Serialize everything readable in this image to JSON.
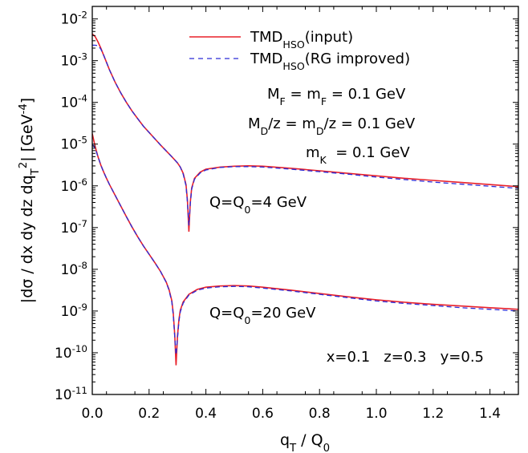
{
  "chart_data": {
    "type": "line",
    "xlabel": "q_T / Q_0",
    "ylabel": "|dσ / dx dy dz dq_T^2| [GeV^-4]",
    "xlim": [
      0,
      1.5
    ],
    "ylim_log10": [
      -11,
      -1.7
    ],
    "log_y": true,
    "grid": false,
    "legend_position": "top",
    "x_ticks": [
      "0.0",
      "0.2",
      "0.4",
      "0.6",
      "0.8",
      "1.0",
      "1.2",
      "1.4"
    ],
    "y_tick_exponents": [
      "-2",
      "-3",
      "-4",
      "-5",
      "-6",
      "-7",
      "-8",
      "-9",
      "-10",
      "-11"
    ],
    "y_tick_base": "10",
    "colors": {
      "input": "#e8202a",
      "rg": "#2b2bd8"
    },
    "legend": [
      {
        "key": "input",
        "base": "TMD",
        "sub": "HSO",
        "rest": "(input)",
        "style": "solid"
      },
      {
        "key": "rg",
        "base": "TMD",
        "sub": "HSO",
        "rest": "(RG improved)",
        "style": "dashed"
      }
    ],
    "annotations": [
      {
        "id": "mass-f",
        "parts": [
          [
            "M",
            ""
          ],
          [
            "F",
            "sub"
          ],
          [
            " = m",
            ""
          ],
          [
            "F",
            "sub"
          ],
          [
            " = 0.1 GeV",
            ""
          ]
        ]
      },
      {
        "id": "mass-d",
        "parts": [
          [
            "M",
            ""
          ],
          [
            "D",
            "sub"
          ],
          [
            "/z = m",
            ""
          ],
          [
            "D",
            "sub"
          ],
          [
            "/z = 0.1 GeV",
            ""
          ]
        ]
      },
      {
        "id": "mass-k",
        "parts": [
          [
            "m",
            ""
          ],
          [
            "K",
            "sub"
          ],
          [
            "  = 0.1 GeV",
            ""
          ]
        ]
      },
      {
        "id": "label-q4",
        "parts": [
          [
            "Q=Q",
            ""
          ],
          [
            "0",
            "sub"
          ],
          [
            "=4 GeV",
            ""
          ]
        ]
      },
      {
        "id": "label-q20",
        "parts": [
          [
            "Q=Q",
            ""
          ],
          [
            "0",
            "sub"
          ],
          [
            "=20 GeV",
            ""
          ]
        ]
      },
      {
        "id": "kinematics",
        "parts": [
          [
            "x=0.1   z=0.3   y=0.5",
            ""
          ]
        ]
      }
    ],
    "series": [
      {
        "name": "TMD_HSO(input), Q=Q_0=4 GeV",
        "key": "input",
        "points": [
          [
            0,
            -2.36
          ],
          [
            0.01,
            -2.42
          ],
          [
            0.02,
            -2.55
          ],
          [
            0.03,
            -2.7
          ],
          [
            0.04,
            -2.87
          ],
          [
            0.05,
            -3.04
          ],
          [
            0.06,
            -3.21
          ],
          [
            0.08,
            -3.51
          ],
          [
            0.1,
            -3.77
          ],
          [
            0.12,
            -4.0
          ],
          [
            0.14,
            -4.21
          ],
          [
            0.16,
            -4.39
          ],
          [
            0.18,
            -4.57
          ],
          [
            0.2,
            -4.72
          ],
          [
            0.22,
            -4.87
          ],
          [
            0.24,
            -5.02
          ],
          [
            0.26,
            -5.16
          ],
          [
            0.28,
            -5.3
          ],
          [
            0.3,
            -5.45
          ],
          [
            0.31,
            -5.55
          ],
          [
            0.32,
            -5.7
          ],
          [
            0.33,
            -5.97
          ],
          [
            0.335,
            -6.35
          ],
          [
            0.34,
            -7.1
          ],
          [
            0.345,
            -6.4
          ],
          [
            0.35,
            -6.05
          ],
          [
            0.36,
            -5.82
          ],
          [
            0.38,
            -5.67
          ],
          [
            0.4,
            -5.6
          ],
          [
            0.45,
            -5.55
          ],
          [
            0.5,
            -5.53
          ],
          [
            0.55,
            -5.52
          ],
          [
            0.6,
            -5.53
          ],
          [
            0.7,
            -5.58
          ],
          [
            0.8,
            -5.64
          ],
          [
            0.9,
            -5.7
          ],
          [
            1.0,
            -5.76
          ],
          [
            1.1,
            -5.82
          ],
          [
            1.2,
            -5.87
          ],
          [
            1.3,
            -5.92
          ],
          [
            1.4,
            -5.97
          ],
          [
            1.5,
            -6.02
          ]
        ]
      },
      {
        "name": "TMD_HSO(RG improved), Q=Q_0=4 GeV",
        "key": "rg",
        "points": [
          [
            0,
            -2.63
          ],
          [
            0.01,
            -2.63
          ],
          [
            0.02,
            -2.64
          ],
          [
            0.03,
            -2.72
          ],
          [
            0.04,
            -2.87
          ],
          [
            0.05,
            -3.04
          ],
          [
            0.06,
            -3.21
          ],
          [
            0.08,
            -3.51
          ],
          [
            0.1,
            -3.77
          ],
          [
            0.12,
            -4.0
          ],
          [
            0.14,
            -4.21
          ],
          [
            0.16,
            -4.39
          ],
          [
            0.18,
            -4.57
          ],
          [
            0.2,
            -4.72
          ],
          [
            0.22,
            -4.87
          ],
          [
            0.24,
            -5.02
          ],
          [
            0.26,
            -5.16
          ],
          [
            0.28,
            -5.3
          ],
          [
            0.3,
            -5.45
          ],
          [
            0.31,
            -5.55
          ],
          [
            0.32,
            -5.72
          ],
          [
            0.33,
            -6.0
          ],
          [
            0.335,
            -6.4
          ],
          [
            0.34,
            -6.95
          ],
          [
            0.345,
            -6.45
          ],
          [
            0.35,
            -6.08
          ],
          [
            0.36,
            -5.84
          ],
          [
            0.38,
            -5.69
          ],
          [
            0.4,
            -5.62
          ],
          [
            0.45,
            -5.56
          ],
          [
            0.5,
            -5.54
          ],
          [
            0.55,
            -5.54
          ],
          [
            0.6,
            -5.55
          ],
          [
            0.7,
            -5.6
          ],
          [
            0.8,
            -5.66
          ],
          [
            0.9,
            -5.72
          ],
          [
            1.0,
            -5.79
          ],
          [
            1.1,
            -5.85
          ],
          [
            1.2,
            -5.91
          ],
          [
            1.3,
            -5.96
          ],
          [
            1.4,
            -6.01
          ],
          [
            1.5,
            -6.06
          ]
        ]
      },
      {
        "name": "TMD_HSO(input), Q=Q_0=20 GeV",
        "key": "input",
        "points": [
          [
            0,
            -4.75
          ],
          [
            0.01,
            -5.05
          ],
          [
            0.02,
            -5.3
          ],
          [
            0.03,
            -5.5
          ],
          [
            0.04,
            -5.67
          ],
          [
            0.05,
            -5.82
          ],
          [
            0.06,
            -5.96
          ],
          [
            0.08,
            -6.22
          ],
          [
            0.1,
            -6.48
          ],
          [
            0.12,
            -6.74
          ],
          [
            0.14,
            -6.99
          ],
          [
            0.16,
            -7.22
          ],
          [
            0.18,
            -7.44
          ],
          [
            0.2,
            -7.64
          ],
          [
            0.22,
            -7.84
          ],
          [
            0.24,
            -8.05
          ],
          [
            0.26,
            -8.3
          ],
          [
            0.27,
            -8.48
          ],
          [
            0.28,
            -8.75
          ],
          [
            0.285,
            -9.05
          ],
          [
            0.29,
            -9.55
          ],
          [
            0.295,
            -10.3
          ],
          [
            0.3,
            -9.6
          ],
          [
            0.305,
            -9.2
          ],
          [
            0.31,
            -8.98
          ],
          [
            0.32,
            -8.78
          ],
          [
            0.34,
            -8.6
          ],
          [
            0.37,
            -8.48
          ],
          [
            0.4,
            -8.43
          ],
          [
            0.45,
            -8.4
          ],
          [
            0.5,
            -8.39
          ],
          [
            0.55,
            -8.4
          ],
          [
            0.6,
            -8.43
          ],
          [
            0.7,
            -8.5
          ],
          [
            0.8,
            -8.58
          ],
          [
            0.9,
            -8.66
          ],
          [
            1.0,
            -8.73
          ],
          [
            1.1,
            -8.79
          ],
          [
            1.2,
            -8.84
          ],
          [
            1.3,
            -8.88
          ],
          [
            1.4,
            -8.92
          ],
          [
            1.5,
            -8.96
          ]
        ]
      },
      {
        "name": "TMD_HSO(RG improved), Q=Q_0=20 GeV",
        "key": "rg",
        "points": [
          [
            0,
            -5.0
          ],
          [
            0.01,
            -5.1
          ],
          [
            0.02,
            -5.3
          ],
          [
            0.03,
            -5.5
          ],
          [
            0.04,
            -5.67
          ],
          [
            0.05,
            -5.82
          ],
          [
            0.06,
            -5.96
          ],
          [
            0.08,
            -6.22
          ],
          [
            0.1,
            -6.48
          ],
          [
            0.12,
            -6.74
          ],
          [
            0.14,
            -6.99
          ],
          [
            0.16,
            -7.22
          ],
          [
            0.18,
            -7.44
          ],
          [
            0.2,
            -7.64
          ],
          [
            0.22,
            -7.84
          ],
          [
            0.24,
            -8.05
          ],
          [
            0.26,
            -8.31
          ],
          [
            0.27,
            -8.5
          ],
          [
            0.28,
            -8.78
          ],
          [
            0.285,
            -9.1
          ],
          [
            0.29,
            -9.6
          ],
          [
            0.295,
            -10.05
          ],
          [
            0.3,
            -9.65
          ],
          [
            0.305,
            -9.25
          ],
          [
            0.31,
            -9.02
          ],
          [
            0.32,
            -8.81
          ],
          [
            0.34,
            -8.62
          ],
          [
            0.37,
            -8.5
          ],
          [
            0.4,
            -8.45
          ],
          [
            0.45,
            -8.42
          ],
          [
            0.5,
            -8.41
          ],
          [
            0.55,
            -8.42
          ],
          [
            0.6,
            -8.45
          ],
          [
            0.7,
            -8.52
          ],
          [
            0.8,
            -8.6
          ],
          [
            0.9,
            -8.68
          ],
          [
            1.0,
            -8.76
          ],
          [
            1.1,
            -8.82
          ],
          [
            1.2,
            -8.87
          ],
          [
            1.3,
            -8.92
          ],
          [
            1.4,
            -8.96
          ],
          [
            1.5,
            -9.0
          ]
        ]
      }
    ]
  }
}
